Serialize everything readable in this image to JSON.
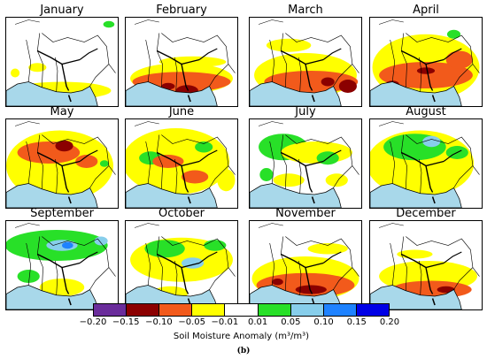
{
  "panels": [
    {
      "title": "January"
    },
    {
      "title": "February"
    },
    {
      "title": "March"
    },
    {
      "title": "April"
    },
    {
      "title": "May"
    },
    {
      "title": "June"
    },
    {
      "title": "July"
    },
    {
      "title": "August"
    },
    {
      "title": "September"
    },
    {
      "title": "October"
    },
    {
      "title": "November"
    },
    {
      "title": "December"
    }
  ],
  "colorbar": {
    "label": "Soil Moisture Anomaly (m³/m³)",
    "ticks": [
      "−0.20",
      "−0.15",
      "−0.10",
      "−0.05",
      "−0.01",
      "0.01",
      "0.05",
      "0.10",
      "0.15",
      "0.20"
    ],
    "colors": [
      "#6a2c9b",
      "#8b0000",
      "#f25a1b",
      "#ffff00",
      "#ffffff",
      "#28e028",
      "#87ceeb",
      "#1e82ff",
      "#0000e6"
    ]
  },
  "figure_label": "(b)",
  "palette": {
    "ocean": "#a8d8ea"
  }
}
